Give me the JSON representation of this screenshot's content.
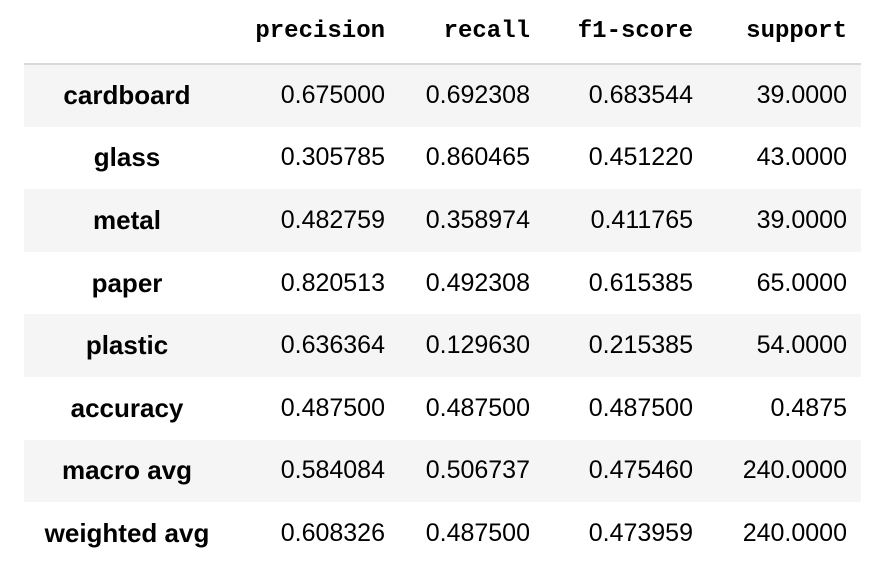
{
  "table": {
    "columns": [
      "precision",
      "recall",
      "f1-score",
      "support"
    ],
    "rows": [
      {
        "label": "cardboard",
        "precision": "0.675000",
        "recall": "0.692308",
        "f1": "0.683544",
        "support": "39.0000"
      },
      {
        "label": "glass",
        "precision": "0.305785",
        "recall": "0.860465",
        "f1": "0.451220",
        "support": "43.0000"
      },
      {
        "label": "metal",
        "precision": "0.482759",
        "recall": "0.358974",
        "f1": "0.411765",
        "support": "39.0000"
      },
      {
        "label": "paper",
        "precision": "0.820513",
        "recall": "0.492308",
        "f1": "0.615385",
        "support": "65.0000"
      },
      {
        "label": "plastic",
        "precision": "0.636364",
        "recall": "0.129630",
        "f1": "0.215385",
        "support": "54.0000"
      },
      {
        "label": "accuracy",
        "precision": "0.487500",
        "recall": "0.487500",
        "f1": "0.487500",
        "support": "0.4875"
      },
      {
        "label": "macro avg",
        "precision": "0.584084",
        "recall": "0.506737",
        "f1": "0.475460",
        "support": "240.0000"
      },
      {
        "label": "weighted avg",
        "precision": "0.608326",
        "recall": "0.487500",
        "f1": "0.473959",
        "support": "240.0000"
      }
    ]
  },
  "colors": {
    "stripe": "#f5f5f5",
    "header_rule": "#d9d9d9",
    "text": "#000000"
  }
}
